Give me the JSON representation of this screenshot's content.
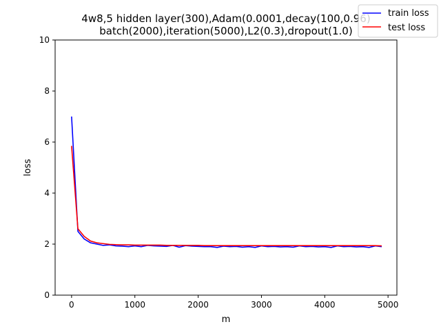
{
  "chart_data": {
    "type": "line",
    "title_line1": "4w8,5 hidden layer(300),Adam(0.0001,decay(100,0.96)",
    "title_line2": "batch(2000),iteration(5000),L2(0.3),dropout(1.0)",
    "xlabel": "m",
    "ylabel": "loss",
    "xlim": [
      -260,
      5140
    ],
    "ylim": [
      0,
      10
    ],
    "xticks": [
      0,
      1000,
      2000,
      3000,
      4000,
      5000
    ],
    "yticks": [
      0,
      2,
      4,
      6,
      8,
      10
    ],
    "legend_placement": "top-right",
    "grid": false,
    "series": [
      {
        "name": "train loss",
        "color": "#0000ff",
        "x": [
          0,
          100,
          200,
          300,
          400,
          500,
          600,
          700,
          800,
          900,
          1000,
          1100,
          1200,
          1300,
          1400,
          1500,
          1600,
          1700,
          1800,
          1900,
          2000,
          2100,
          2200,
          2300,
          2400,
          2500,
          2600,
          2700,
          2800,
          2900,
          3000,
          3100,
          3200,
          3300,
          3400,
          3500,
          3600,
          3700,
          3800,
          3900,
          4000,
          4100,
          4200,
          4300,
          4400,
          4500,
          4600,
          4700,
          4800,
          4900
        ],
        "values": [
          7.0,
          2.5,
          2.2,
          2.05,
          2.0,
          1.95,
          1.97,
          1.93,
          1.92,
          1.9,
          1.93,
          1.9,
          1.95,
          1.93,
          1.92,
          1.91,
          1.95,
          1.88,
          1.94,
          1.92,
          1.91,
          1.9,
          1.9,
          1.87,
          1.92,
          1.9,
          1.91,
          1.88,
          1.9,
          1.87,
          1.93,
          1.9,
          1.91,
          1.89,
          1.9,
          1.88,
          1.93,
          1.9,
          1.91,
          1.89,
          1.9,
          1.87,
          1.93,
          1.9,
          1.91,
          1.89,
          1.9,
          1.87,
          1.93,
          1.9
        ]
      },
      {
        "name": "test loss",
        "color": "#ff0000",
        "x": [
          0,
          100,
          200,
          300,
          400,
          500,
          600,
          700,
          800,
          900,
          1000,
          1100,
          1200,
          1300,
          1400,
          1500,
          1600,
          1700,
          1800,
          1900,
          2000,
          2100,
          2200,
          2300,
          2400,
          2500,
          2600,
          2700,
          2800,
          2900,
          3000,
          3100,
          3200,
          3300,
          3400,
          3500,
          3600,
          3700,
          3800,
          3900,
          4000,
          4100,
          4200,
          4300,
          4400,
          4500,
          4600,
          4700,
          4800,
          4900
        ],
        "values": [
          5.85,
          2.6,
          2.3,
          2.12,
          2.05,
          2.02,
          1.99,
          1.98,
          1.97,
          1.97,
          1.96,
          1.96,
          1.96,
          1.96,
          1.96,
          1.95,
          1.95,
          1.95,
          1.95,
          1.95,
          1.95,
          1.94,
          1.94,
          1.94,
          1.94,
          1.94,
          1.94,
          1.94,
          1.94,
          1.94,
          1.94,
          1.94,
          1.94,
          1.94,
          1.94,
          1.94,
          1.94,
          1.94,
          1.94,
          1.94,
          1.94,
          1.94,
          1.94,
          1.94,
          1.94,
          1.94,
          1.94,
          1.94,
          1.94,
          1.93
        ]
      }
    ]
  }
}
